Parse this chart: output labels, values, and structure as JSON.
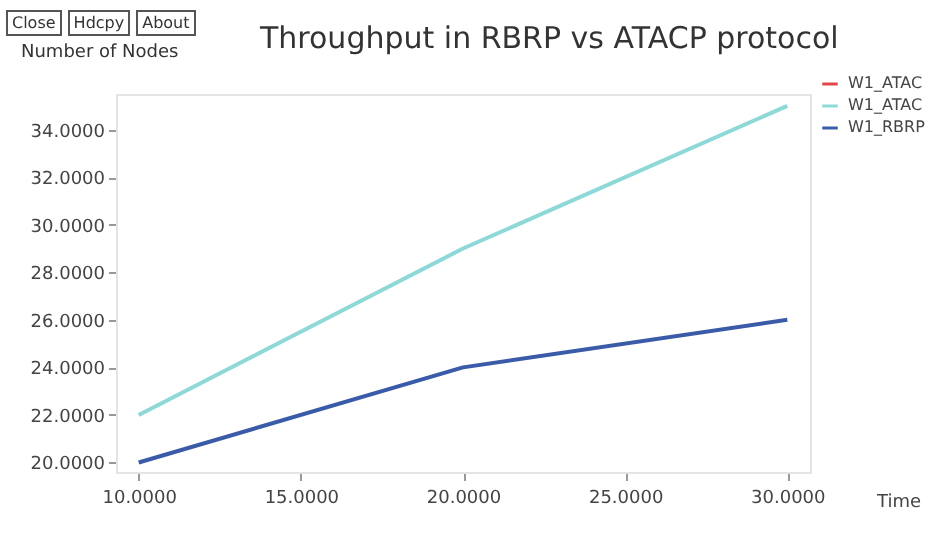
{
  "chart_data": {
    "type": "line",
    "title": "Throughput in RBRP vs ATACP protocol",
    "xlabel": "Time",
    "ylabel": "Number of Nodes",
    "annotations": [
      "Close",
      "Hdcpy",
      "About"
    ],
    "x": [
      10,
      20,
      30
    ],
    "series": [
      {
        "name": "W1_ATAC",
        "color": "#e04848",
        "values": [
          null,
          null,
          null
        ]
      },
      {
        "name": "W1_ATAC",
        "color": "#8ed8d8",
        "values": [
          22,
          29,
          35
        ]
      },
      {
        "name": "W1_RBRP",
        "color": "#3a5ba8",
        "values": [
          20,
          24,
          26
        ]
      }
    ],
    "xlim": [
      9.3,
      30.7
    ],
    "ylim": [
      19.6,
      35.5
    ],
    "xticks": [
      {
        "value": 10,
        "label": "10.0000"
      },
      {
        "value": 15,
        "label": "15.0000"
      },
      {
        "value": 20,
        "label": "20.0000"
      },
      {
        "value": 25,
        "label": "25.0000"
      },
      {
        "value": 30,
        "label": "30.0000"
      }
    ],
    "yticks": [
      {
        "value": 20,
        "label": "20.0000"
      },
      {
        "value": 22,
        "label": "22.0000"
      },
      {
        "value": 24,
        "label": "24.0000"
      },
      {
        "value": 26,
        "label": "26.0000"
      },
      {
        "value": 28,
        "label": "28.0000"
      },
      {
        "value": 30,
        "label": "30.0000"
      },
      {
        "value": 32,
        "label": "32.0000"
      },
      {
        "value": 34,
        "label": "34.0000"
      }
    ],
    "grid": false,
    "legend": "top right",
    "line_style": "solid",
    "marker": "none"
  }
}
